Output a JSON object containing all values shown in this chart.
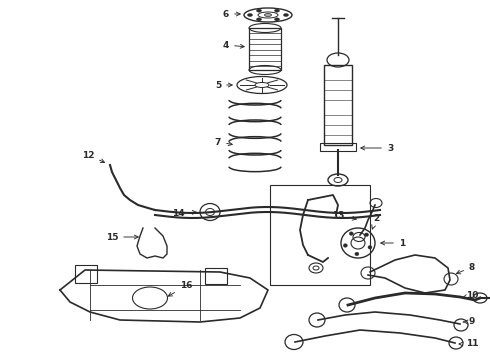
{
  "bg_color": "#ffffff",
  "line_color": "#2a2a2a",
  "fig_width": 4.9,
  "fig_height": 3.6,
  "dpi": 100
}
